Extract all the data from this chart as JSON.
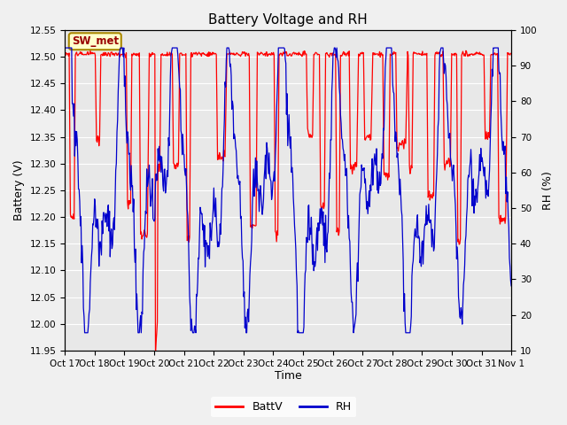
{
  "title": "Battery Voltage and RH",
  "xlabel": "Time",
  "ylabel_left": "Battery (V)",
  "ylabel_right": "RH (%)",
  "ylim_left": [
    11.95,
    12.55
  ],
  "ylim_right": [
    10,
    100
  ],
  "yticks_left": [
    11.95,
    12.0,
    12.05,
    12.1,
    12.15,
    12.2,
    12.25,
    12.3,
    12.35,
    12.4,
    12.45,
    12.5,
    12.55
  ],
  "yticks_right": [
    10,
    20,
    30,
    40,
    50,
    60,
    70,
    80,
    90,
    100
  ],
  "xtick_labels": [
    "Oct 17",
    "Oct 18",
    "Oct 19",
    "Oct 20",
    "Oct 21",
    "Oct 22",
    "Oct 23",
    "Oct 24",
    "Oct 25",
    "Oct 26",
    "Oct 27",
    "Oct 28",
    "Oct 29",
    "Oct 30",
    "Oct 31",
    "Nov 1"
  ],
  "batt_color": "#FF0000",
  "rh_color": "#0000CC",
  "fig_bg_color": "#F0F0F0",
  "plot_bg_color": "#E8E8E8",
  "legend_label_batt": "BattV",
  "legend_label_rh": "RH",
  "annotation_text": "SW_met",
  "annotation_bg": "#FFFFCC",
  "annotation_border": "#AA8800",
  "annotation_text_color": "#990000",
  "grid_color": "#FFFFFF",
  "title_fontsize": 11,
  "axis_label_fontsize": 9,
  "tick_fontsize": 7.5
}
